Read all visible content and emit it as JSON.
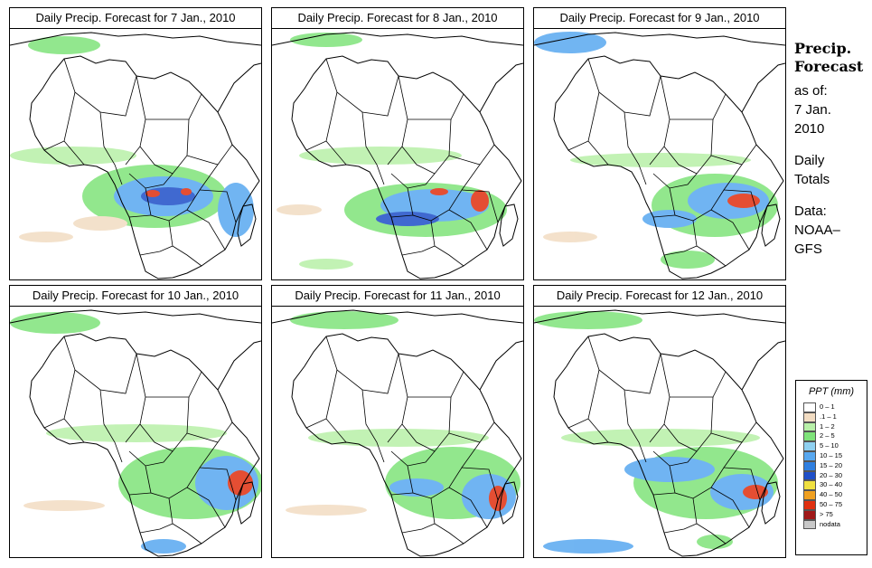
{
  "panels": [
    {
      "title": "Daily Precip. Forecast for  7 Jan., 2010"
    },
    {
      "title": "Daily Precip. Forecast for  8 Jan., 2010"
    },
    {
      "title": "Daily Precip. Forecast for  9 Jan., 2010"
    },
    {
      "title": "Daily Precip. Forecast for  10 Jan., 2010"
    },
    {
      "title": "Daily Precip. Forecast for  11 Jan., 2010"
    },
    {
      "title": "Daily Precip. Forecast for  12 Jan., 2010"
    }
  ],
  "side": {
    "title_line1": "Precip.",
    "title_line2": "Forecast",
    "asof_1": "as of:",
    "asof_2": "7 Jan.",
    "asof_3": "2010",
    "daily_1": "Daily",
    "daily_2": "Totals",
    "data_1": "Data:",
    "data_2": "NOAA–",
    "data_3": "GFS"
  },
  "legend": {
    "title": "PPT (mm)",
    "items": [
      {
        "label": "0 – 1",
        "color": "#ffffff"
      },
      {
        "label": ".1 – 1",
        "color": "#f2dcc2"
      },
      {
        "label": "1 – 2",
        "color": "#b8f0a8"
      },
      {
        "label": "2 – 5",
        "color": "#7fe37a"
      },
      {
        "label": "5 – 10",
        "color": "#8fd0f0"
      },
      {
        "label": "10 – 15",
        "color": "#58a8f0"
      },
      {
        "label": "15 – 20",
        "color": "#2f7fe0"
      },
      {
        "label": "20 – 30",
        "color": "#1f4fc8"
      },
      {
        "label": "30 – 40",
        "color": "#f0e040"
      },
      {
        "label": "40 – 50",
        "color": "#f0a020"
      },
      {
        "label": "50 – 75",
        "color": "#e03010"
      },
      {
        "label": "> 75",
        "color": "#a01818"
      },
      {
        "label": "nodata",
        "color": "#c8c8c8"
      }
    ]
  }
}
